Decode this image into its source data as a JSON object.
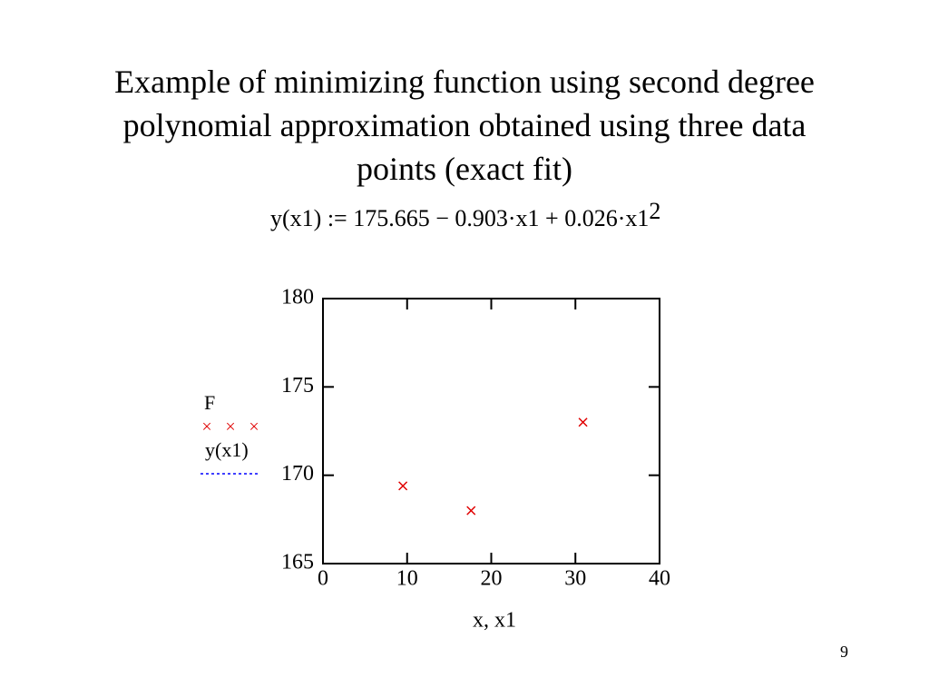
{
  "chart_data": {
    "type": "scatter",
    "title": "Example of minimizing function using second degree polynomial approximation obtained using three data points (exact fit)",
    "formula": "y(x1) := 175.665 − 0.903·x1 + 0.026·x1",
    "formula_exponent": "2",
    "x_label": "x, x1",
    "page_number": "9",
    "series": [
      {
        "name": "F",
        "color": "#e00000",
        "marker": "×",
        "x": [
          9.5,
          17.6,
          30.9
        ],
        "values": [
          169.4,
          168.0,
          173.0
        ]
      },
      {
        "name": "y(x1)",
        "color": "#0000ff",
        "x": [],
        "values": []
      }
    ],
    "xlim": [
      0,
      40
    ],
    "xticks": [
      0,
      10,
      20,
      30,
      40
    ],
    "ylim": [
      165,
      180
    ],
    "yticks": [
      165,
      170,
      175,
      180
    ]
  }
}
